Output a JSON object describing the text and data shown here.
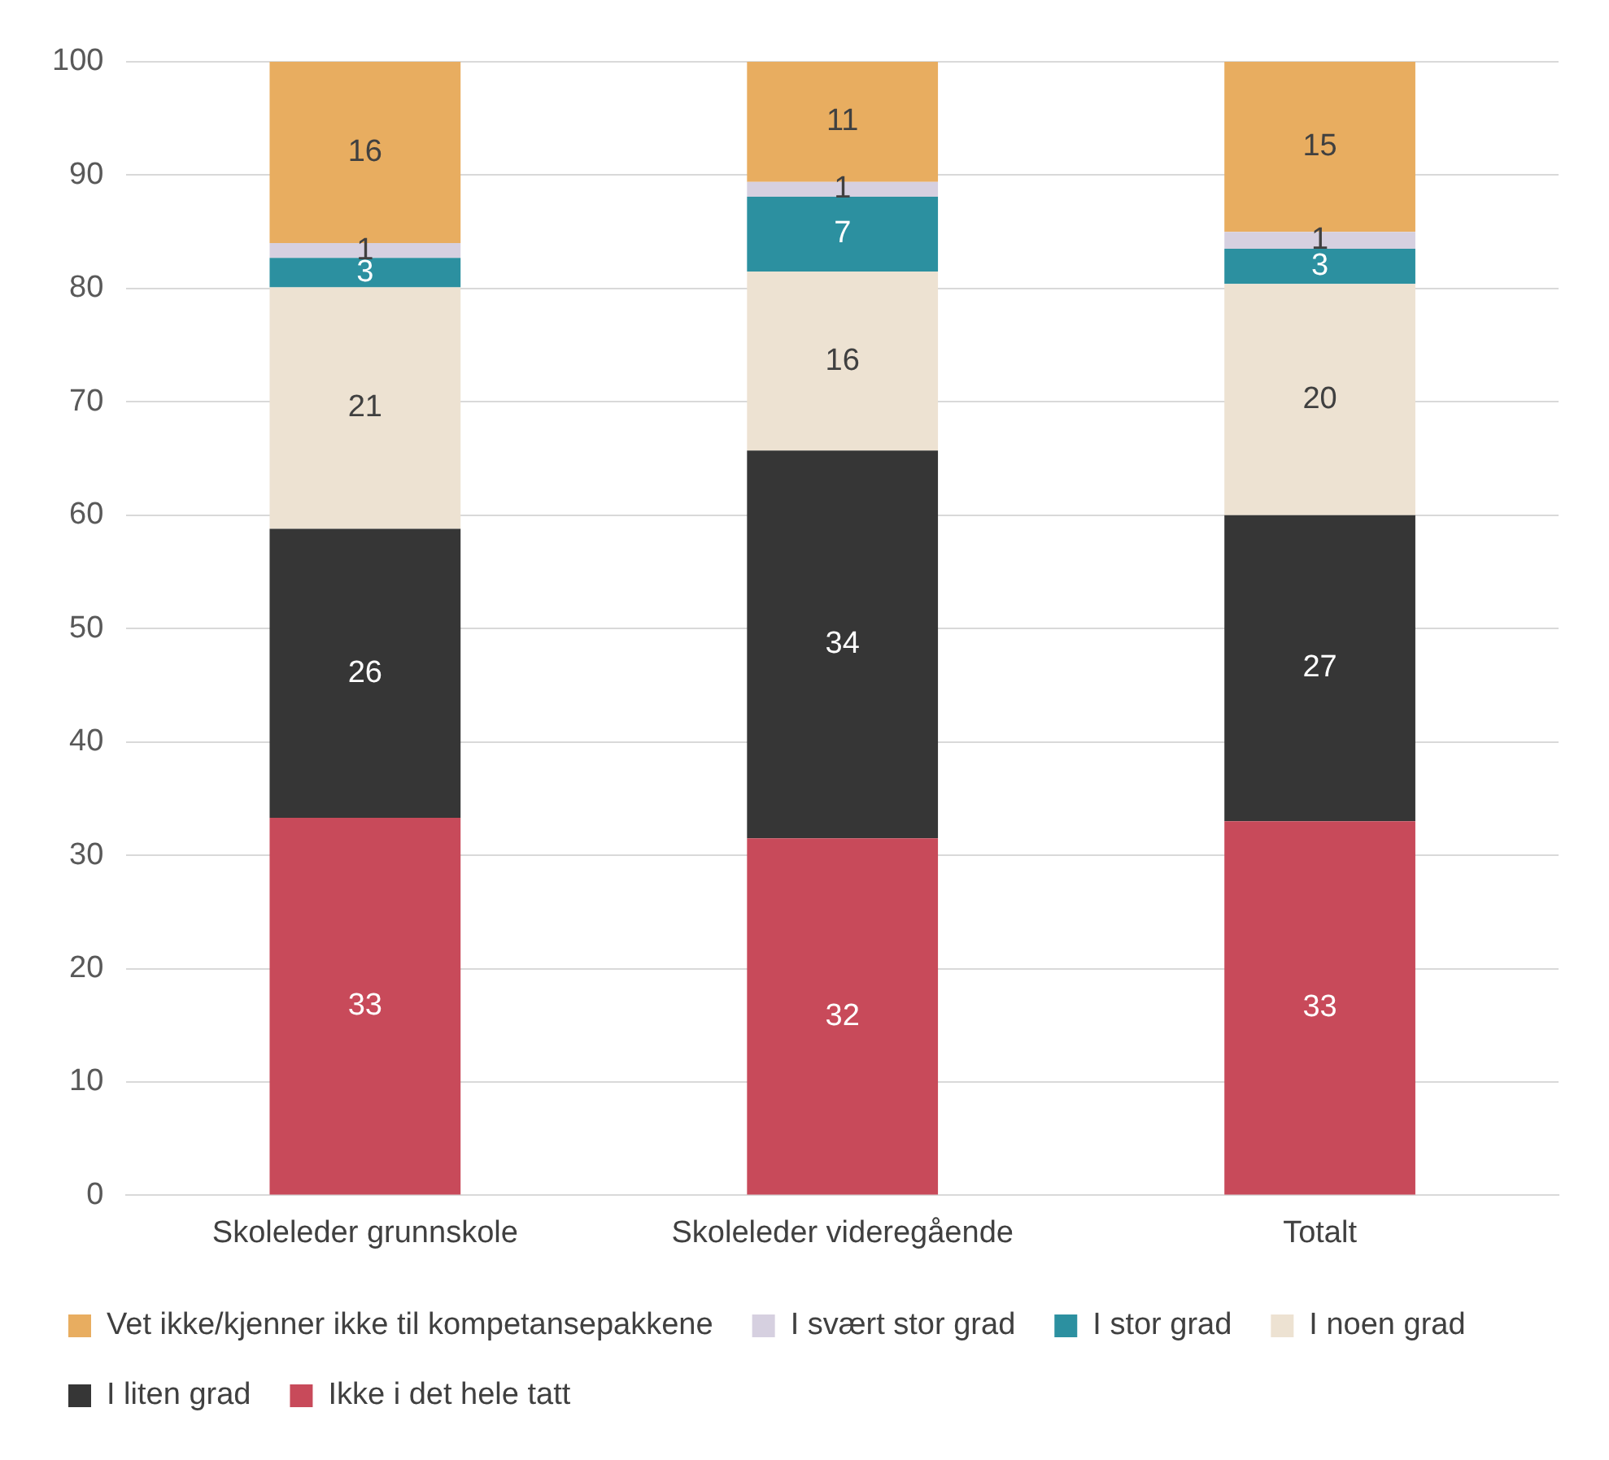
{
  "chart_data": {
    "type": "bar",
    "stacked": true,
    "categories": [
      "Skoleleder grunnskole",
      "Skoleleder videregående",
      "Totalt"
    ],
    "series": [
      {
        "name": "Ikke i det hele tatt",
        "color": "#c84a5a",
        "values": [
          33.3,
          31.5,
          33.0
        ],
        "value_labels": [
          "33",
          "32",
          "33"
        ]
      },
      {
        "name": "I liten grad",
        "color": "#363636",
        "values": [
          25.5,
          34.2,
          27.0
        ],
        "value_labels": [
          "26",
          "34",
          "27"
        ]
      },
      {
        "name": "I noen grad",
        "color": "#ede2d2",
        "values": [
          21.3,
          15.8,
          20.4
        ],
        "value_labels": [
          "21",
          "16",
          "20"
        ]
      },
      {
        "name": "I stor grad",
        "color": "#2c90a0",
        "values": [
          2.6,
          6.6,
          3.1
        ],
        "value_labels": [
          "3",
          "7",
          "3"
        ]
      },
      {
        "name": "I svært stor grad",
        "color": "#d6d0e0",
        "values": [
          1.3,
          1.3,
          1.5
        ],
        "value_labels": [
          "1",
          "1",
          "1"
        ]
      },
      {
        "name": "Vet ikke/kjenner ikke til kompetansepakkene",
        "color": "#e8ad60",
        "values": [
          16.0,
          10.6,
          15.0
        ],
        "value_labels": [
          "16",
          "11",
          "15"
        ]
      }
    ],
    "ylim": [
      0,
      100
    ],
    "yticks": [
      0,
      10,
      20,
      30,
      40,
      50,
      60,
      70,
      80,
      90,
      100
    ],
    "grid": "y",
    "legend": "bottom"
  }
}
